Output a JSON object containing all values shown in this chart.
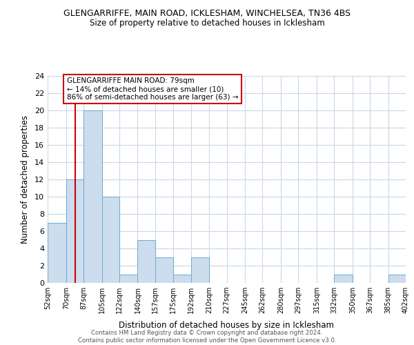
{
  "title": "GLENGARRIFFE, MAIN ROAD, ICKLESHAM, WINCHELSEA, TN36 4BS",
  "subtitle": "Size of property relative to detached houses in Icklesham",
  "xlabel": "Distribution of detached houses by size in Icklesham",
  "ylabel": "Number of detached properties",
  "bin_edges": [
    52,
    70,
    87,
    105,
    122,
    140,
    157,
    175,
    192,
    210,
    227,
    245,
    262,
    280,
    297,
    315,
    332,
    350,
    367,
    385,
    402
  ],
  "bar_heights": [
    7,
    12,
    20,
    10,
    1,
    5,
    3,
    1,
    3,
    0,
    0,
    0,
    0,
    0,
    0,
    0,
    1,
    0,
    0,
    1
  ],
  "bar_color": "#ccdded",
  "bar_edge_color": "#6aaad4",
  "marker_value": 79,
  "marker_color": "#cc0000",
  "annotation_title": "GLENGARRIFFE MAIN ROAD: 79sqm",
  "annotation_line1": "← 14% of detached houses are smaller (10)",
  "annotation_line2": "86% of semi-detached houses are larger (63) →",
  "annotation_box_color": "#ffffff",
  "annotation_box_edge": "#cc0000",
  "ylim": [
    0,
    24
  ],
  "yticks": [
    0,
    2,
    4,
    6,
    8,
    10,
    12,
    14,
    16,
    18,
    20,
    22,
    24
  ],
  "tick_labels": [
    "52sqm",
    "70sqm",
    "87sqm",
    "105sqm",
    "122sqm",
    "140sqm",
    "157sqm",
    "175sqm",
    "192sqm",
    "210sqm",
    "227sqm",
    "245sqm",
    "262sqm",
    "280sqm",
    "297sqm",
    "315sqm",
    "332sqm",
    "350sqm",
    "367sqm",
    "385sqm",
    "402sqm"
  ],
  "footer_line1": "Contains HM Land Registry data © Crown copyright and database right 2024.",
  "footer_line2": "Contains public sector information licensed under the Open Government Licence v3.0.",
  "bg_color": "#ffffff",
  "grid_color": "#c8d8e8"
}
